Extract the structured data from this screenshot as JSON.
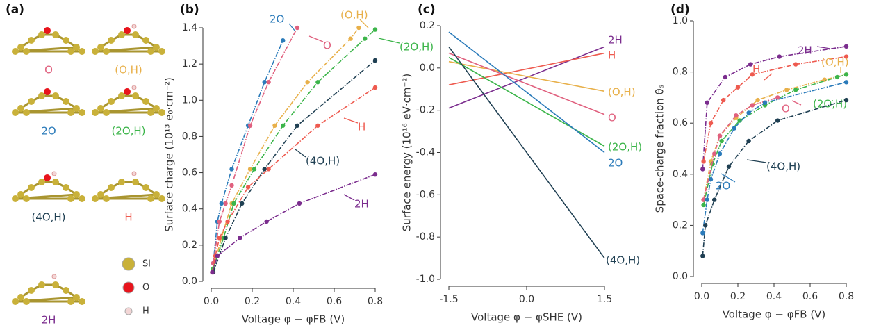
{
  "structures": {
    "label": "(a)",
    "items": [
      {
        "name": "O",
        "color": "#e0607e"
      },
      {
        "name": "(O,H)",
        "color": "#e8b04a"
      },
      {
        "name": "2O",
        "color": "#2b7bba"
      },
      {
        "name": "(2O,H)",
        "color": "#3cb54a"
      },
      {
        "name": "(4O,H)",
        "color": "#1f3f52"
      },
      {
        "name": "H",
        "color": "#ee5a4f"
      },
      {
        "name": "2H",
        "color": "#7b2d8e"
      }
    ],
    "legend": [
      {
        "name": "Si",
        "color": "#c9b13a"
      },
      {
        "name": "O",
        "color": "#e8141c"
      },
      {
        "name": "H",
        "color": "#f3d6d6"
      }
    ]
  },
  "chart_data": [
    {
      "type": "line",
      "label": "(b)",
      "xlabel": "Voltage φ − φFB (V)",
      "ylabel": "Surface charge (10¹³ e₀·cm⁻²)",
      "line_style": "dashdot",
      "markers": true,
      "xlim": [
        0,
        0.8
      ],
      "xticks": [
        {
          "value": 0,
          "label": "0.0"
        },
        0.2,
        0.4,
        0.6,
        0.8
      ],
      "ylim": [
        0,
        1.4
      ],
      "yticks": [
        {
          "value": 0,
          "label": "0.0"
        },
        0.2,
        0.4,
        0.6,
        0.8,
        {
          "value": 1,
          "label": "1.0"
        },
        1.2,
        1.4
      ],
      "series": [
        {
          "name": "2O",
          "color": "#2b7bba",
          "x": [
            0.01,
            0.03,
            0.05,
            0.1,
            0.18,
            0.26,
            0.35
          ],
          "values": [
            0.1,
            0.33,
            0.43,
            0.62,
            0.86,
            1.1,
            1.33
          ]
        },
        {
          "name": "O",
          "color": "#e0607e",
          "x": [
            0.01,
            0.04,
            0.07,
            0.1,
            0.19,
            0.28,
            0.42
          ],
          "values": [
            0.1,
            0.33,
            0.43,
            0.53,
            0.86,
            1.1,
            1.4
          ]
        },
        {
          "name": "(O,H)",
          "color": "#e8b04a",
          "x": [
            0.01,
            0.05,
            0.1,
            0.19,
            0.31,
            0.47,
            0.68,
            0.72
          ],
          "values": [
            0.07,
            0.24,
            0.43,
            0.62,
            0.86,
            1.1,
            1.34,
            1.4
          ]
        },
        {
          "name": "(2O,H)",
          "color": "#3cb54a",
          "x": [
            0.01,
            0.06,
            0.11,
            0.21,
            0.35,
            0.52,
            0.75,
            0.8
          ],
          "values": [
            0.07,
            0.24,
            0.43,
            0.62,
            0.86,
            1.1,
            1.34,
            1.39
          ]
        },
        {
          "name": "(4O,H)",
          "color": "#1f3f52",
          "x": [
            0.01,
            0.07,
            0.15,
            0.26,
            0.42,
            0.8
          ],
          "values": [
            0.05,
            0.24,
            0.43,
            0.62,
            0.86,
            1.22
          ]
        },
        {
          "name": "H",
          "color": "#ee5a4f",
          "x": [
            0.005,
            0.02,
            0.04,
            0.08,
            0.18,
            0.28,
            0.52,
            0.8
          ],
          "values": [
            0.05,
            0.14,
            0.24,
            0.33,
            0.52,
            0.62,
            0.86,
            1.07
          ]
        },
        {
          "name": "2H",
          "color": "#7b2d8e",
          "x": [
            0.005,
            0.03,
            0.14,
            0.27,
            0.43,
            0.8
          ],
          "values": [
            0.05,
            0.14,
            0.24,
            0.33,
            0.43,
            0.59
          ]
        }
      ]
    },
    {
      "type": "line",
      "label": "(c)",
      "xlabel": "Voltage φ − φSHE (V)",
      "ylabel": "Surface energy (10¹⁶ eV·cm⁻²)",
      "line_style": "solid",
      "markers": false,
      "xlim": [
        -1.5,
        1.5
      ],
      "xticks": [
        -1.5,
        {
          "value": 0,
          "label": "0.0"
        },
        1.5
      ],
      "ylim": [
        -1,
        0.2
      ],
      "yticks": [
        0.2,
        {
          "value": 0,
          "label": "0.0"
        },
        -0.2,
        -0.4,
        -0.6,
        -0.8,
        {
          "value": -1,
          "label": "-1.0"
        }
      ],
      "series": [
        {
          "name": "2H",
          "color": "#7b2d8e",
          "x": [
            -1.5,
            1.5
          ],
          "values": [
            -0.19,
            0.1
          ]
        },
        {
          "name": "H",
          "color": "#ee5a4f",
          "x": [
            -1.5,
            1.5
          ],
          "values": [
            -0.08,
            0.07
          ]
        },
        {
          "name": "(O,H)",
          "color": "#e8b04a",
          "x": [
            -1.5,
            1.5
          ],
          "values": [
            0.03,
            -0.11
          ]
        },
        {
          "name": "O",
          "color": "#e0607e",
          "x": [
            -1.5,
            1.5
          ],
          "values": [
            0.07,
            -0.22
          ]
        },
        {
          "name": "(2O,H)",
          "color": "#3cb54a",
          "x": [
            -1.5,
            1.5
          ],
          "values": [
            0.05,
            -0.37
          ]
        },
        {
          "name": "2O",
          "color": "#2b7bba",
          "x": [
            -1.5,
            1.5
          ],
          "values": [
            0.17,
            -0.4
          ]
        },
        {
          "name": "(4O,H)",
          "color": "#1f3f52",
          "x": [
            -1.5,
            1.5
          ],
          "values": [
            0.1,
            -0.9
          ]
        }
      ]
    },
    {
      "type": "line",
      "label": "(d)",
      "xlabel": "Voltage φ − φFB (V)",
      "ylabel": "Space-charge fraction θₛ",
      "line_style": "dashdot",
      "markers": true,
      "xlim": [
        0,
        0.8
      ],
      "xticks": [
        {
          "value": 0,
          "label": "0.0"
        },
        0.2,
        0.4,
        0.6,
        0.8
      ],
      "ylim": [
        0,
        1
      ],
      "yticks": [
        {
          "value": 0,
          "label": "0.0"
        },
        0.2,
        0.4,
        0.6,
        0.8,
        {
          "value": 1,
          "label": "1.0"
        }
      ],
      "series": [
        {
          "name": "2H",
          "color": "#7b2d8e",
          "x": [
            0.005,
            0.03,
            0.13,
            0.27,
            0.43,
            0.8
          ],
          "values": [
            0.42,
            0.68,
            0.78,
            0.83,
            0.86,
            0.9
          ]
        },
        {
          "name": "H",
          "color": "#ee5a4f",
          "x": [
            0.01,
            0.05,
            0.12,
            0.2,
            0.28,
            0.52,
            0.8
          ],
          "values": [
            0.45,
            0.6,
            0.69,
            0.74,
            0.79,
            0.83,
            0.86
          ]
        },
        {
          "name": "(O,H)",
          "color": "#e8b04a",
          "x": [
            0.01,
            0.05,
            0.1,
            0.19,
            0.31,
            0.47,
            0.68,
            0.8
          ],
          "values": [
            0.3,
            0.45,
            0.55,
            0.62,
            0.69,
            0.73,
            0.77,
            0.79
          ]
        },
        {
          "name": "(2O,H)",
          "color": "#3cb54a",
          "x": [
            0.01,
            0.06,
            0.11,
            0.21,
            0.35,
            0.52,
            0.75,
            0.8
          ],
          "values": [
            0.28,
            0.44,
            0.53,
            0.61,
            0.67,
            0.73,
            0.78,
            0.79
          ]
        },
        {
          "name": "O",
          "color": "#e0607e",
          "x": [
            0.01,
            0.07,
            0.1,
            0.19,
            0.28,
            0.42
          ],
          "values": [
            0.3,
            0.48,
            0.55,
            0.63,
            0.67,
            0.7
          ]
        },
        {
          "name": "(4O,H)",
          "color": "#1f3f52",
          "x": [
            0.005,
            0.02,
            0.07,
            0.15,
            0.26,
            0.42,
            0.8
          ],
          "values": [
            0.08,
            0.2,
            0.3,
            0.43,
            0.53,
            0.61,
            0.69
          ]
        },
        {
          "name": "2O",
          "color": "#2b7bba",
          "x": [
            0.005,
            0.03,
            0.05,
            0.1,
            0.18,
            0.26,
            0.35,
            0.8
          ],
          "values": [
            0.17,
            0.3,
            0.38,
            0.48,
            0.58,
            0.64,
            0.68,
            0.76
          ]
        }
      ]
    }
  ]
}
